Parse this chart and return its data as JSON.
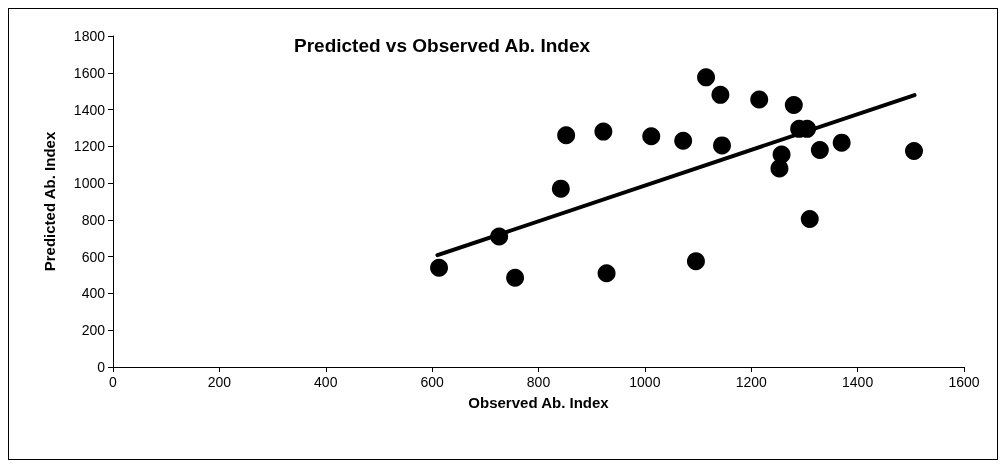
{
  "chart_data": {
    "type": "scatter",
    "title": "Predicted vs Observed Ab. Index",
    "xlabel": "Observed Ab. Index",
    "ylabel": "Predicted Ab. Index",
    "xlim": [
      0,
      1600
    ],
    "xticks": [
      0,
      200,
      400,
      600,
      800,
      1000,
      1200,
      1400,
      1600
    ],
    "ylim": [
      0,
      1800
    ],
    "yticks": [
      0,
      200,
      400,
      600,
      800,
      1000,
      1200,
      1400,
      1600,
      1800
    ],
    "grid": false,
    "marker": "circle",
    "series": [
      {
        "color": "#000000",
        "x": [
          613,
          726,
          756,
          842,
          852,
          922,
          928,
          1012,
          1072,
          1096,
          1115,
          1142,
          1145,
          1215,
          1253,
          1257,
          1280,
          1290,
          1305,
          1310,
          1329,
          1370,
          1506
        ],
        "values": [
          540,
          710,
          485,
          970,
          1260,
          1280,
          510,
          1255,
          1230,
          575,
          1575,
          1480,
          1205,
          1455,
          1080,
          1155,
          1425,
          1295,
          1295,
          805,
          1180,
          1220,
          1175
        ]
      },
      {
        "type": "line",
        "color": "#000000",
        "line_style": "solid",
        "marker": "none",
        "x": [
          610,
          1507
        ],
        "values": [
          608,
          1479
        ]
      }
    ]
  }
}
